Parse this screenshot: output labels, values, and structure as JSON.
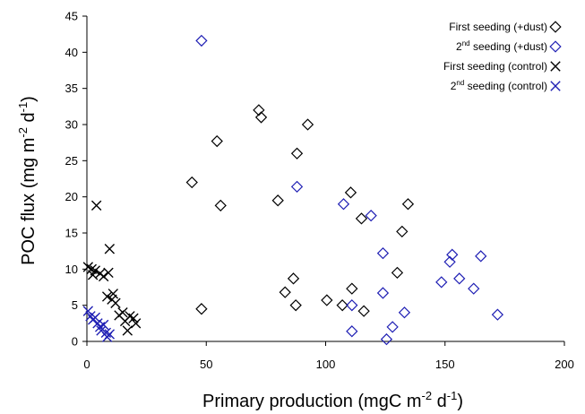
{
  "chart_data": {
    "type": "scatter",
    "title": "",
    "xlabel": {
      "base": "Primary production (mgC m",
      "sup1": "-2",
      "mid": " d",
      "sup2": "-1",
      "end": ")"
    },
    "ylabel": {
      "base": "POC flux (mg m",
      "sup1": "-2",
      "mid": " d",
      "sup2": "-1",
      "end": ")"
    },
    "xlim": [
      0,
      200
    ],
    "ylim": [
      0,
      45
    ],
    "xticks": [
      "0",
      "50",
      "100",
      "150",
      "200"
    ],
    "yticks": [
      "0",
      "5",
      "10",
      "15",
      "20",
      "25",
      "30",
      "35",
      "40",
      "45"
    ],
    "legend_position": "top-right",
    "series": [
      {
        "name": {
          "pre": "First seeding (+dust)",
          "sup": "",
          "post": ""
        },
        "marker": "diamond",
        "color": "#000000",
        "points": [
          [
            48,
            4.5
          ],
          [
            44,
            22
          ],
          [
            54.5,
            27.7
          ],
          [
            56,
            18.8
          ],
          [
            72,
            32
          ],
          [
            73,
            31
          ],
          [
            80,
            19.5
          ],
          [
            83,
            6.8
          ],
          [
            86.5,
            8.7
          ],
          [
            88,
            26
          ],
          [
            87.5,
            5
          ],
          [
            92.5,
            30
          ],
          [
            100.5,
            5.7
          ],
          [
            107,
            5
          ],
          [
            110.5,
            20.6
          ],
          [
            111,
            7.3
          ],
          [
            115,
            17
          ],
          [
            116,
            4.2
          ],
          [
            130,
            9.5
          ],
          [
            132,
            15.2
          ],
          [
            134.5,
            19
          ]
        ]
      },
      {
        "name": {
          "pre": "2",
          "sup": "nd",
          "post": " seeding (+dust)"
        },
        "marker": "diamond",
        "color": "#1f1fb4",
        "points": [
          [
            48,
            41.6
          ],
          [
            88,
            21.4
          ],
          [
            107.5,
            19
          ],
          [
            111,
            5
          ],
          [
            111,
            1.4
          ],
          [
            119,
            17.4
          ],
          [
            124,
            6.7
          ],
          [
            124,
            12.2
          ],
          [
            125.5,
            0.3
          ],
          [
            128,
            2
          ],
          [
            133,
            4
          ],
          [
            148.5,
            8.2
          ],
          [
            152,
            11
          ],
          [
            153,
            12
          ],
          [
            156,
            8.7
          ],
          [
            162,
            7.3
          ],
          [
            165,
            11.8
          ],
          [
            172,
            3.7
          ]
        ]
      },
      {
        "name": {
          "pre": "First seeding (control)",
          "sup": "",
          "post": ""
        },
        "marker": "x",
        "color": "#000000",
        "points": [
          [
            0.5,
            10.3
          ],
          [
            2,
            10
          ],
          [
            2.5,
            9.2
          ],
          [
            3.5,
            9.8
          ],
          [
            4,
            18.8
          ],
          [
            5.5,
            9.4
          ],
          [
            7,
            9
          ],
          [
            8.5,
            6.2
          ],
          [
            9,
            9.5
          ],
          [
            9.5,
            12.8
          ],
          [
            10.5,
            5.8
          ],
          [
            11,
            6.6
          ],
          [
            12,
            5.3
          ],
          [
            13.5,
            3.6
          ],
          [
            15,
            4
          ],
          [
            16,
            2.8
          ],
          [
            17,
            1.5
          ],
          [
            18,
            3.5
          ],
          [
            19.5,
            3.2
          ],
          [
            20.5,
            2.5
          ]
        ]
      },
      {
        "name": {
          "pre": "2",
          "sup": "nd",
          "post": " seeding (control)"
        },
        "marker": "x",
        "color": "#1f1fb4",
        "points": [
          [
            0.5,
            4.2
          ],
          [
            1.5,
            3.5
          ],
          [
            2.5,
            3
          ],
          [
            3.5,
            3.3
          ],
          [
            4.5,
            2.5
          ],
          [
            5.5,
            2
          ],
          [
            6,
            1.5
          ],
          [
            7,
            2.3
          ],
          [
            8,
            1.2
          ],
          [
            8.5,
            0.6
          ],
          [
            9.5,
            1
          ]
        ]
      }
    ]
  }
}
